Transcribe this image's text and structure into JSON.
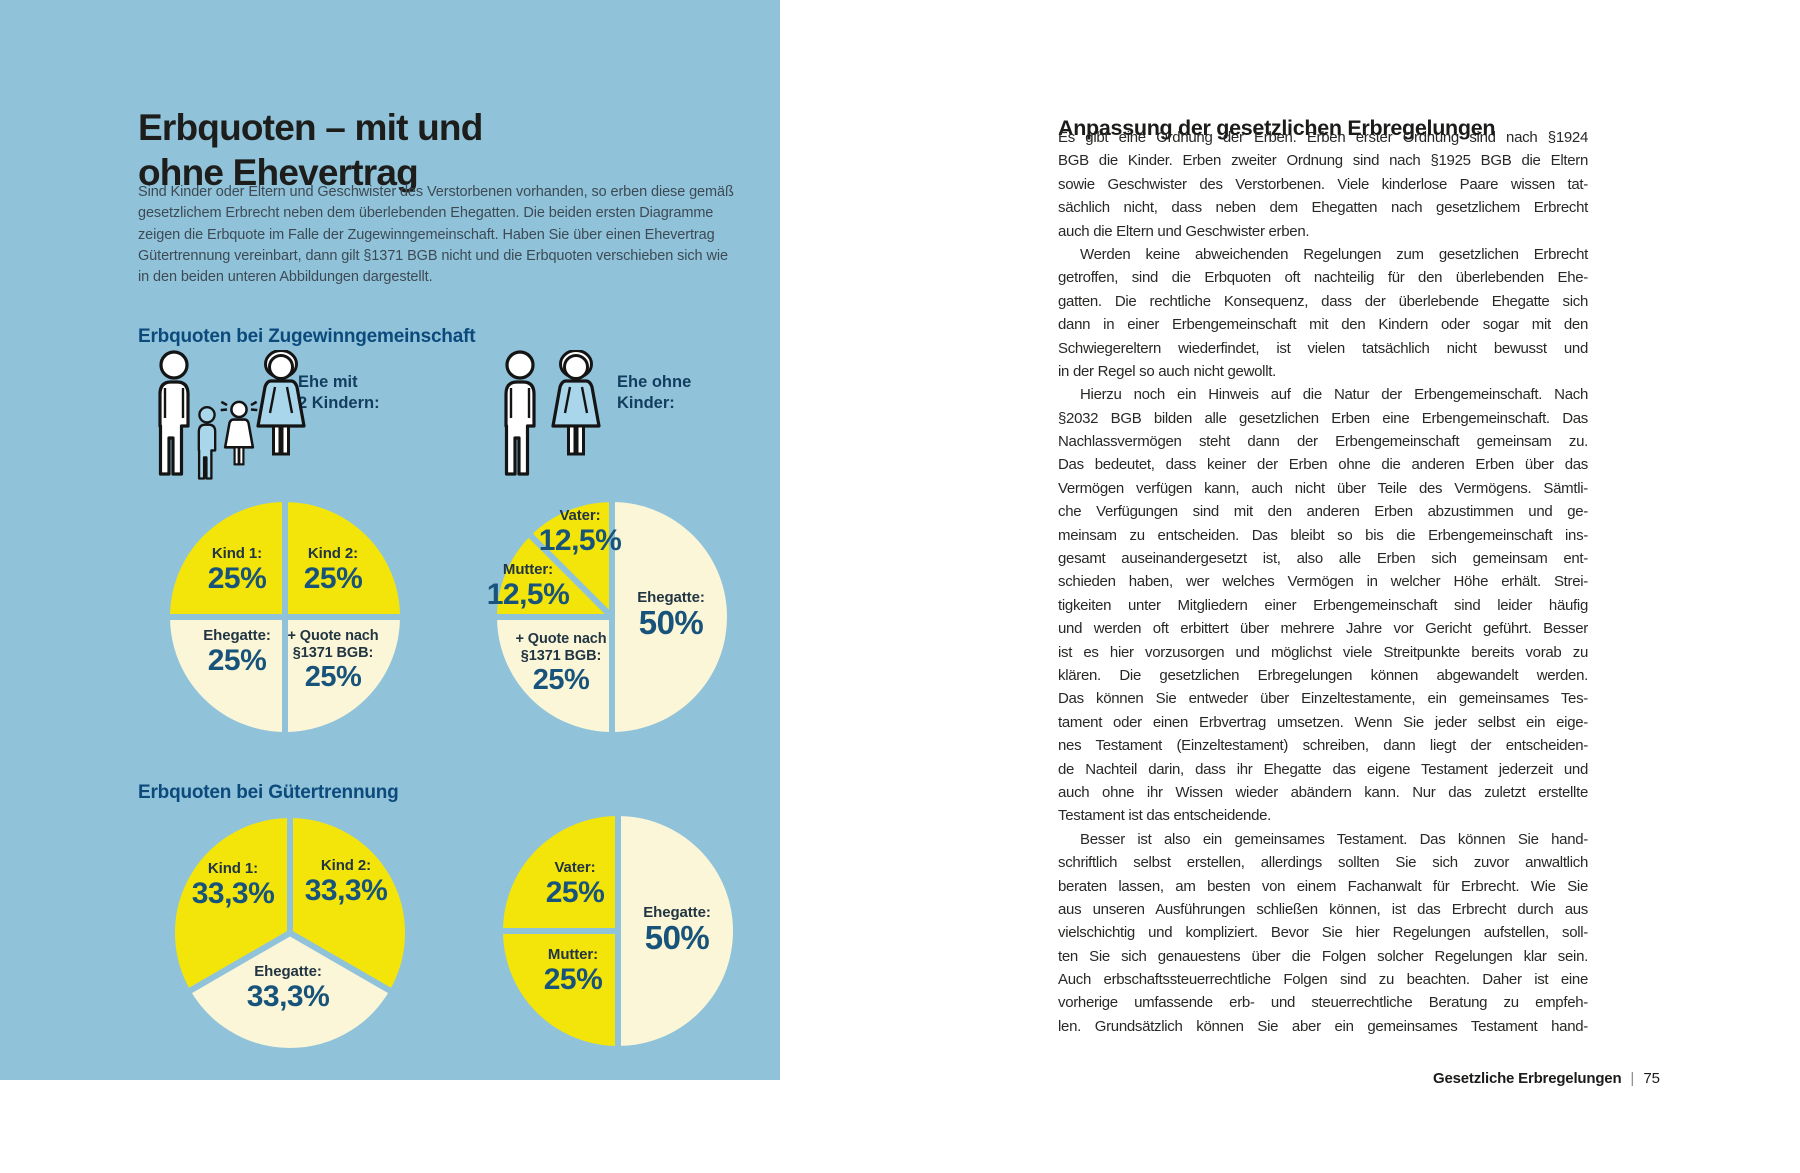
{
  "palette": {
    "background_blue": "#90c3da",
    "slice_yellow": "#f3e50a",
    "slice_cream": "#fbf6d8",
    "percent_navy": "#17537a",
    "heading_navy": "#0c4a7c"
  },
  "left": {
    "title_lines": [
      "Erbquoten – mit und",
      "ohne Ehevertrag"
    ],
    "intro_lines": [
      "Sind Kinder oder Eltern und Geschwister des Verstorbenen vorhanden, so erben diese gemäß",
      "gesetzlichem Erbrecht neben dem überlebenden Ehegatten. Die beiden ersten Diagramme",
      "zeigen die Erbquote im Falle der Zugewinngemeinschaft. Haben Sie über einen Ehevertrag",
      "Gütertrennung vereinbart, dann gilt §1371 BGB nicht und die Erbquoten verschieben sich wie",
      "in den beiden unteren Abbildungen dargestellt."
    ],
    "section1": {
      "heading": "Erbquoten bei Zugewinngemeinschaft",
      "groups": [
        {
          "label_lines": [
            "Ehe mit",
            "2 Kindern:"
          ]
        },
        {
          "label_lines": [
            "Ehe ohne",
            "Kinder:"
          ]
        }
      ]
    },
    "section2": {
      "heading": "Erbquoten bei Gütertrennung"
    }
  },
  "chart_data": [
    {
      "type": "pie",
      "scenario": "Ehe mit 2 Kindern",
      "regime": "Zugewinngemeinschaft",
      "slices": [
        {
          "label": "Kind 1:",
          "value": "25%",
          "pct": 25,
          "color": "#f3e50a",
          "start_deg": 270,
          "end_deg": 360
        },
        {
          "label": "Kind 2:",
          "value": "25%",
          "pct": 25,
          "color": "#f3e50a",
          "start_deg": 0,
          "end_deg": 90
        },
        {
          "label": "Ehegatte:",
          "value": "25%",
          "pct": 25,
          "color": "#fbf6d8",
          "start_deg": 180,
          "end_deg": 270
        },
        {
          "label": "+ Quote nach",
          "label2": "§1371 BGB:",
          "value": "25%",
          "pct": 25,
          "color": "#fbf6d8",
          "start_deg": 90,
          "end_deg": 180
        }
      ]
    },
    {
      "type": "pie",
      "scenario": "Ehe ohne Kinder",
      "regime": "Zugewinngemeinschaft",
      "slices": [
        {
          "label": "Vater:",
          "value": "12,5%",
          "pct": 12.5,
          "color": "#f3e50a",
          "start_deg": 315,
          "end_deg": 360
        },
        {
          "label": "Mutter:",
          "value": "12,5%",
          "pct": 12.5,
          "color": "#f3e50a",
          "start_deg": 270,
          "end_deg": 315
        },
        {
          "label": "+ Quote nach",
          "label2": "§1371 BGB:",
          "value": "25%",
          "pct": 25,
          "color": "#fbf6d8",
          "start_deg": 180,
          "end_deg": 270
        },
        {
          "label": "Ehegatte:",
          "value": "50%",
          "pct": 50,
          "color": "#fbf6d8",
          "start_deg": 0,
          "end_deg": 180
        }
      ]
    },
    {
      "type": "pie",
      "scenario": "Ehe mit 2 Kindern",
      "regime": "Gütertrennung",
      "slices": [
        {
          "label": "Kind 1:",
          "value": "33,3%",
          "pct": 33.3,
          "color": "#f3e50a",
          "start_deg": 240,
          "end_deg": 360
        },
        {
          "label": "Kind 2:",
          "value": "33,3%",
          "pct": 33.3,
          "color": "#f3e50a",
          "start_deg": 0,
          "end_deg": 120
        },
        {
          "label": "Ehegatte:",
          "value": "33,3%",
          "pct": 33.3,
          "color": "#fbf6d8",
          "start_deg": 120,
          "end_deg": 240
        }
      ]
    },
    {
      "type": "pie",
      "scenario": "Ehe ohne Kinder",
      "regime": "Gütertrennung",
      "slices": [
        {
          "label": "Vater:",
          "value": "25%",
          "pct": 25,
          "color": "#f3e50a",
          "start_deg": 270,
          "end_deg": 360
        },
        {
          "label": "Mutter:",
          "value": "25%",
          "pct": 25,
          "color": "#f3e50a",
          "start_deg": 180,
          "end_deg": 270
        },
        {
          "label": "Ehegatte:",
          "value": "50%",
          "pct": 50,
          "color": "#fbf6d8",
          "start_deg": 0,
          "end_deg": 180
        }
      ]
    }
  ],
  "right": {
    "heading": "Anpassung der gesetzlichen Erbregelungen",
    "paragraphs": [
      {
        "indent": false,
        "lines": [
          "Es gibt eine Ordnung der Erben. Erben erster Ordnung sind nach §1924",
          "BGB die Kinder. Erben zweiter Ordnung sind nach §1925 BGB die Eltern",
          "sowie Geschwister des Verstorbenen. Viele kinderlose Paare wissen tat-",
          "sächlich nicht, dass neben dem Ehegatten nach gesetzlichem Erbrecht",
          "auch die Eltern und Geschwister erben."
        ]
      },
      {
        "indent": true,
        "lines": [
          "Werden keine abweichenden Regelungen zum gesetzlichen Erbrecht",
          "getroffen, sind die Erbquoten oft nachteilig für den überlebenden Ehe-",
          "gatten. Die rechtliche Konsequenz, dass der überlebende Ehegatte sich",
          "dann in einer Erbengemeinschaft mit den Kindern oder sogar mit den",
          "Schwiegereltern wiederfindet, ist vielen tatsächlich nicht bewusst und",
          "in der Regel so auch nicht gewollt."
        ]
      },
      {
        "indent": true,
        "lines": [
          "Hierzu noch ein Hinweis auf die Natur der Erbengemeinschaft. Nach",
          "§2032 BGB bilden alle gesetzlichen Erben eine Erbengemeinschaft. Das",
          "Nachlassvermögen steht dann der Erbengemeinschaft gemeinsam zu.",
          "Das bedeutet, dass keiner der Erben ohne die anderen Erben über das",
          "Vermögen verfügen kann, auch nicht über Teile des Vermögens. Sämtli-",
          "che Verfügungen sind mit den anderen Erben abzustimmen und ge-",
          "meinsam zu entscheiden. Das bleibt so bis die Erbengemeinschaft ins-",
          "gesamt auseinandergesetzt ist, also alle Erben sich gemeinsam ent-",
          "schieden haben, wer welches Vermögen in welcher Höhe erhält. Strei-",
          "tigkeiten unter Mitgliedern einer Erbengemeinschaft sind leider häufig",
          "und werden oft erbittert über mehrere Jahre vor Gericht geführt. Besser",
          "ist es hier vorzusorgen und möglichst viele Streitpunkte bereits vorab zu",
          "klären. Die gesetzlichen Erbregelungen können abgewandelt werden.",
          "Das können Sie entweder über Einzeltestamente, ein gemeinsames Tes-",
          "tament oder einen Erbvertrag umsetzen. Wenn Sie jeder selbst ein eige-",
          "nes Testament (Einzeltestament) schreiben, dann liegt der entscheiden-",
          "de Nachteil darin, dass ihr Ehegatte das eigene Testament jederzeit und",
          "auch ohne ihr Wissen wieder abändern kann. Nur das zuletzt erstellte",
          "Testament ist das entscheidende."
        ]
      },
      {
        "indent": true,
        "last_line_justified": true,
        "lines": [
          "Besser ist also ein gemeinsames Testament. Das können Sie hand-",
          "schriftlich selbst erstellen, allerdings sollten Sie sich zuvor anwaltlich",
          "beraten lassen, am besten von einem Fachanwalt für Erbrecht. Wie Sie",
          "aus unseren Ausführungen schließen können, ist das Erbrecht durch aus",
          "vielschichtig und kompliziert. Bevor Sie hier Regelungen aufstellen, soll-",
          "ten Sie sich genauestens über die Folgen solcher Regelungen klar sein.",
          "Auch erbschaftssteuerrechtliche Folgen sind zu beachten. Daher ist eine",
          "vorherige umfassende erb- und steuerrechtliche Beratung zu empfeh-",
          "len. Grundsätzlich können Sie aber ein gemeinsames Testament hand-"
        ]
      }
    ],
    "footer": {
      "label": "Gesetzliche Erbregelungen",
      "divider": "|",
      "page": "75"
    }
  }
}
